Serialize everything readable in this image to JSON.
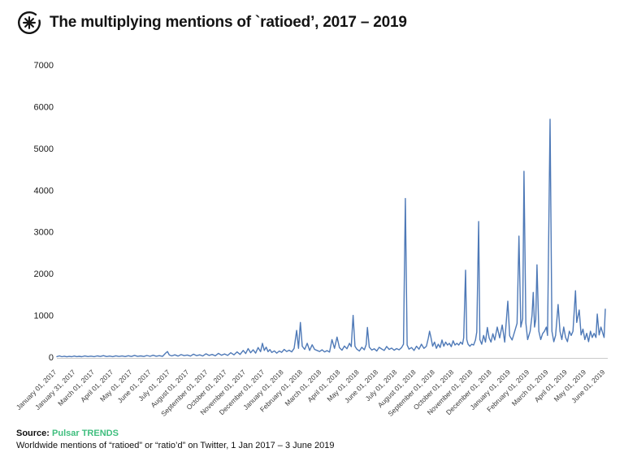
{
  "header": {
    "title": "The multiplying mentions of `ratioed’, 2017 – 2019"
  },
  "footer": {
    "source_label": "Source:",
    "source_name": "Pulsar TRENDS",
    "description": "Worldwide mentions of “ratioed” or “ratio’d” on Twitter, 1 Jan 2017 – 3 June 2019"
  },
  "colors": {
    "line": "#4e79b7",
    "source_green": "#3fbe7e",
    "axis_line": "#cbcbcb",
    "title_text": "#141414",
    "tick_text": "#3c3c3c"
  },
  "chart_data": {
    "type": "line",
    "title": "The multiplying mentions of `ratioed’, 2017 – 2019",
    "xlabel": "",
    "ylabel": "",
    "grid": false,
    "legend_position": "none",
    "ylim": [
      0,
      7000
    ],
    "y_ticks": [
      0,
      1000,
      2000,
      3000,
      4000,
      5000,
      6000,
      7000
    ],
    "x_tick_labels": [
      "January 01, 2017",
      "January 31, 2017",
      "March 01, 2017",
      "April 01, 2017",
      "May 01, 2017",
      "June 01, 2017",
      "July 01, 2017",
      "August 01, 2017",
      "September 01, 2017",
      "October 01, 2017",
      "November 01, 2017",
      "December 01, 2017",
      "January 01, 2018",
      "February 01, 2018",
      "March 01, 2018",
      "April 01, 2018",
      "May 01, 2018",
      "June 01, 2018",
      "July 01, 2018",
      "August 01, 2018",
      "September 01, 2018",
      "October 01, 2018",
      "November 01, 2018",
      "December 01, 2018",
      "January 01, 2019",
      "February 01, 2019",
      "March 01, 2019",
      "April 01, 2019",
      "May 01, 2019",
      "June 01, 2019"
    ],
    "x_unit": "days since 1 Jan 2017",
    "x_range_days": [
      0,
      883
    ],
    "series": [
      {
        "name": "Worldwide Twitter mentions of “ratioed” / “ratio’d”",
        "points": [
          [
            0,
            12
          ],
          [
            4,
            30
          ],
          [
            8,
            10
          ],
          [
            12,
            22
          ],
          [
            16,
            8
          ],
          [
            20,
            18
          ],
          [
            24,
            10
          ],
          [
            28,
            26
          ],
          [
            32,
            12
          ],
          [
            36,
            20
          ],
          [
            40,
            10
          ],
          [
            45,
            28
          ],
          [
            50,
            14
          ],
          [
            55,
            24
          ],
          [
            60,
            12
          ],
          [
            65,
            30
          ],
          [
            70,
            15
          ],
          [
            75,
            35
          ],
          [
            80,
            14
          ],
          [
            85,
            26
          ],
          [
            90,
            12
          ],
          [
            95,
            32
          ],
          [
            100,
            16
          ],
          [
            105,
            28
          ],
          [
            110,
            14
          ],
          [
            115,
            34
          ],
          [
            120,
            16
          ],
          [
            125,
            40
          ],
          [
            130,
            18
          ],
          [
            135,
            30
          ],
          [
            140,
            15
          ],
          [
            145,
            38
          ],
          [
            150,
            20
          ],
          [
            155,
            45
          ],
          [
            160,
            22
          ],
          [
            165,
            35
          ],
          [
            170,
            18
          ],
          [
            175,
            95
          ],
          [
            178,
            135
          ],
          [
            181,
            50
          ],
          [
            185,
            30
          ],
          [
            190,
            55
          ],
          [
            195,
            25
          ],
          [
            200,
            60
          ],
          [
            205,
            35
          ],
          [
            210,
            50
          ],
          [
            215,
            25
          ],
          [
            220,
            70
          ],
          [
            225,
            35
          ],
          [
            230,
            55
          ],
          [
            235,
            28
          ],
          [
            240,
            80
          ],
          [
            245,
            40
          ],
          [
            250,
            65
          ],
          [
            255,
            32
          ],
          [
            260,
            90
          ],
          [
            265,
            45
          ],
          [
            270,
            75
          ],
          [
            275,
            40
          ],
          [
            280,
            105
          ],
          [
            285,
            55
          ],
          [
            290,
            125
          ],
          [
            295,
            65
          ],
          [
            300,
            160
          ],
          [
            304,
            85
          ],
          [
            308,
            205
          ],
          [
            312,
            105
          ],
          [
            316,
            175
          ],
          [
            320,
            95
          ],
          [
            324,
            230
          ],
          [
            328,
            130
          ],
          [
            331,
            330
          ],
          [
            334,
            160
          ],
          [
            337,
            240
          ],
          [
            340,
            130
          ],
          [
            343,
            180
          ],
          [
            346,
            110
          ],
          [
            350,
            150
          ],
          [
            354,
            95
          ],
          [
            358,
            145
          ],
          [
            362,
            115
          ],
          [
            366,
            185
          ],
          [
            370,
            135
          ],
          [
            374,
            165
          ],
          [
            378,
            125
          ],
          [
            382,
            210
          ],
          [
            386,
            640
          ],
          [
            389,
            210
          ],
          [
            392,
            830
          ],
          [
            395,
            260
          ],
          [
            399,
            185
          ],
          [
            403,
            330
          ],
          [
            407,
            160
          ],
          [
            411,
            295
          ],
          [
            415,
            185
          ],
          [
            419,
            160
          ],
          [
            423,
            135
          ],
          [
            427,
            175
          ],
          [
            431,
            125
          ],
          [
            435,
            155
          ],
          [
            439,
            120
          ],
          [
            443,
            420
          ],
          [
            447,
            210
          ],
          [
            451,
            480
          ],
          [
            455,
            225
          ],
          [
            459,
            165
          ],
          [
            463,
            265
          ],
          [
            467,
            200
          ],
          [
            471,
            330
          ],
          [
            474,
            250
          ],
          [
            477,
            1000
          ],
          [
            480,
            260
          ],
          [
            483,
            190
          ],
          [
            487,
            145
          ],
          [
            491,
            235
          ],
          [
            495,
            175
          ],
          [
            498,
            300
          ],
          [
            500,
            710
          ],
          [
            503,
            240
          ],
          [
            507,
            170
          ],
          [
            511,
            200
          ],
          [
            515,
            145
          ],
          [
            519,
            235
          ],
          [
            523,
            195
          ],
          [
            527,
            160
          ],
          [
            531,
            255
          ],
          [
            535,
            185
          ],
          [
            539,
            215
          ],
          [
            543,
            165
          ],
          [
            547,
            205
          ],
          [
            551,
            175
          ],
          [
            555,
            230
          ],
          [
            558,
            310
          ],
          [
            561,
            3800
          ],
          [
            564,
            290
          ],
          [
            567,
            190
          ],
          [
            571,
            230
          ],
          [
            575,
            160
          ],
          [
            579,
            260
          ],
          [
            583,
            190
          ],
          [
            587,
            310
          ],
          [
            591,
            210
          ],
          [
            595,
            260
          ],
          [
            598,
            450
          ],
          [
            600,
            620
          ],
          [
            602,
            490
          ],
          [
            605,
            260
          ],
          [
            608,
            360
          ],
          [
            611,
            210
          ],
          [
            614,
            310
          ],
          [
            617,
            230
          ],
          [
            620,
            410
          ],
          [
            623,
            260
          ],
          [
            626,
            360
          ],
          [
            629,
            290
          ],
          [
            632,
            330
          ],
          [
            635,
            250
          ],
          [
            638,
            390
          ],
          [
            641,
            290
          ],
          [
            644,
            330
          ],
          [
            647,
            290
          ],
          [
            650,
            360
          ],
          [
            653,
            310
          ],
          [
            655,
            460
          ],
          [
            658,
            2080
          ],
          [
            660,
            420
          ],
          [
            662,
            310
          ],
          [
            665,
            260
          ],
          [
            668,
            310
          ],
          [
            671,
            290
          ],
          [
            674,
            410
          ],
          [
            676,
            600
          ],
          [
            679,
            3250
          ],
          [
            681,
            420
          ],
          [
            684,
            310
          ],
          [
            687,
            520
          ],
          [
            690,
            360
          ],
          [
            693,
            710
          ],
          [
            696,
            460
          ],
          [
            699,
            360
          ],
          [
            702,
            560
          ],
          [
            705,
            410
          ],
          [
            709,
            720
          ],
          [
            713,
            460
          ],
          [
            717,
            770
          ],
          [
            721,
            360
          ],
          [
            726,
            1340
          ],
          [
            729,
            510
          ],
          [
            733,
            410
          ],
          [
            737,
            610
          ],
          [
            741,
            810
          ],
          [
            744,
            2900
          ],
          [
            747,
            720
          ],
          [
            750,
            920
          ],
          [
            752,
            4450
          ],
          [
            755,
            820
          ],
          [
            758,
            420
          ],
          [
            762,
            620
          ],
          [
            765,
            1000
          ],
          [
            767,
            1550
          ],
          [
            769,
            720
          ],
          [
            771,
            900
          ],
          [
            773,
            2210
          ],
          [
            776,
            620
          ],
          [
            779,
            420
          ],
          [
            782,
            560
          ],
          [
            785,
            620
          ],
          [
            788,
            720
          ],
          [
            790,
            520
          ],
          [
            794,
            5700
          ],
          [
            797,
            620
          ],
          [
            800,
            370
          ],
          [
            803,
            520
          ],
          [
            807,
            1260
          ],
          [
            810,
            620
          ],
          [
            813,
            420
          ],
          [
            816,
            720
          ],
          [
            819,
            470
          ],
          [
            822,
            370
          ],
          [
            825,
            620
          ],
          [
            828,
            520
          ],
          [
            831,
            620
          ],
          [
            835,
            1590
          ],
          [
            837,
            830
          ],
          [
            841,
            1130
          ],
          [
            844,
            530
          ],
          [
            847,
            670
          ],
          [
            850,
            420
          ],
          [
            853,
            570
          ],
          [
            856,
            370
          ],
          [
            859,
            620
          ],
          [
            862,
            470
          ],
          [
            865,
            570
          ],
          [
            868,
            470
          ],
          [
            870,
            1030
          ],
          [
            873,
            530
          ],
          [
            876,
            720
          ],
          [
            879,
            570
          ],
          [
            881,
            470
          ],
          [
            883,
            1150
          ]
        ]
      }
    ]
  }
}
